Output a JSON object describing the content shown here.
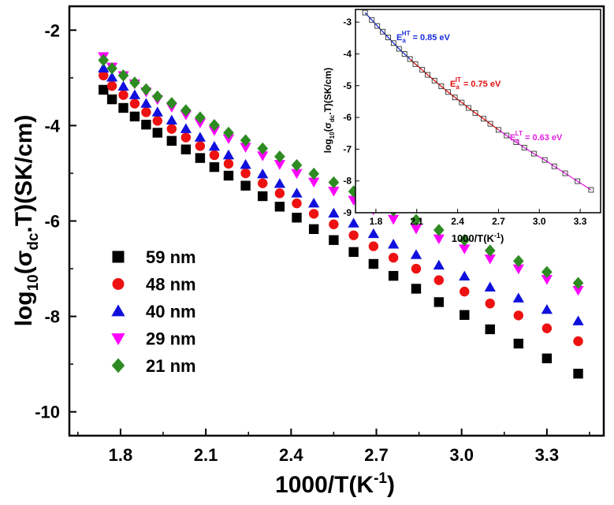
{
  "chart_data": [
    {
      "type": "scatter",
      "xlabel": "1000/T(K⁻¹)",
      "ylabel": "log10(σdc·T)(SK/cm)",
      "xlim": [
        1.62,
        3.5
      ],
      "ylim": [
        -10.5,
        -1.5
      ],
      "xticks": [
        "1.8",
        "2.1",
        "2.4",
        "2.7",
        "3.0",
        "3.3"
      ],
      "yticks": [
        "-2",
        "-4",
        "-6",
        "-8",
        "-10"
      ],
      "legend_position": "bottom-left",
      "x": [
        1.74,
        1.77,
        1.81,
        1.85,
        1.89,
        1.93,
        1.98,
        2.03,
        2.08,
        2.13,
        2.18,
        2.24,
        2.3,
        2.36,
        2.42,
        2.48,
        2.55,
        2.62,
        2.69,
        2.76,
        2.84,
        2.92,
        3.01,
        3.1,
        3.2,
        3.3,
        3.41
      ],
      "series": [
        {
          "name": "59 nm",
          "marker": "square",
          "color": "#000000",
          "values": [
            -3.25,
            -3.45,
            -3.63,
            -3.81,
            -3.98,
            -4.15,
            -4.32,
            -4.5,
            -4.68,
            -4.87,
            -5.05,
            -5.26,
            -5.48,
            -5.7,
            -5.93,
            -6.17,
            -6.4,
            -6.65,
            -6.9,
            -7.15,
            -7.42,
            -7.7,
            -7.97,
            -8.27,
            -8.57,
            -8.88,
            -9.2
          ]
        },
        {
          "name": "48 nm",
          "marker": "circle",
          "color": "#ee1111",
          "values": [
            -2.95,
            -3.17,
            -3.36,
            -3.54,
            -3.72,
            -3.9,
            -4.07,
            -4.25,
            -4.43,
            -4.62,
            -4.8,
            -5.0,
            -5.21,
            -5.42,
            -5.63,
            -5.85,
            -6.07,
            -6.3,
            -6.53,
            -6.77,
            -7.0,
            -7.24,
            -7.48,
            -7.73,
            -7.98,
            -8.25,
            -8.52
          ]
        },
        {
          "name": "40 nm",
          "marker": "triangle-up",
          "color": "#1010dd",
          "values": [
            -2.8,
            -2.99,
            -3.18,
            -3.36,
            -3.54,
            -3.72,
            -3.89,
            -4.07,
            -4.25,
            -4.44,
            -4.62,
            -4.82,
            -5.02,
            -5.22,
            -5.42,
            -5.63,
            -5.84,
            -6.05,
            -6.27,
            -6.49,
            -6.71,
            -6.93,
            -7.16,
            -7.39,
            -7.62,
            -7.86,
            -8.1
          ]
        },
        {
          "name": "29 nm",
          "marker": "triangle-down",
          "color": "#ff00ff",
          "values": [
            -2.55,
            -2.77,
            -2.95,
            -3.12,
            -3.29,
            -3.45,
            -3.61,
            -3.77,
            -3.94,
            -4.1,
            -4.27,
            -4.45,
            -4.63,
            -4.81,
            -5.0,
            -5.18,
            -5.37,
            -5.56,
            -5.76,
            -5.96,
            -6.16,
            -6.37,
            -6.58,
            -6.79,
            -7.0,
            -7.22,
            -7.45
          ]
        },
        {
          "name": "21 nm",
          "marker": "diamond",
          "color": "#2e8b22",
          "values": [
            -2.63,
            -2.8,
            -2.95,
            -3.1,
            -3.24,
            -3.39,
            -3.53,
            -3.68,
            -3.83,
            -3.99,
            -4.15,
            -4.31,
            -4.48,
            -4.65,
            -4.83,
            -5.01,
            -5.19,
            -5.38,
            -5.58,
            -5.78,
            -5.98,
            -6.19,
            -6.4,
            -6.62,
            -6.84,
            -7.07,
            -7.3
          ]
        }
      ]
    },
    {
      "type": "line",
      "panel": "inset",
      "xlabel": "1000/T(K⁻¹)",
      "ylabel": "log10(σdc·T)(SK/cm)",
      "xlim": [
        1.65,
        3.45
      ],
      "ylim": [
        -9,
        -2.6
      ],
      "xticks": [
        "1.8",
        "2.1",
        "2.4",
        "2.7",
        "3.0",
        "3.3"
      ],
      "yticks": [
        "-3",
        "-4",
        "-5",
        "-6",
        "-7",
        "-8",
        "-9"
      ],
      "x": [
        1.72,
        1.77,
        1.81,
        1.85,
        1.89,
        1.93,
        1.97,
        2.01,
        2.05,
        2.09,
        2.14,
        2.18,
        2.23,
        2.28,
        2.33,
        2.38,
        2.43,
        2.48,
        2.53,
        2.59,
        2.64,
        2.7,
        2.76,
        2.83,
        2.89,
        2.96,
        3.04,
        3.11,
        3.19,
        3.28,
        3.38
      ],
      "values": [
        -2.7,
        -2.93,
        -3.12,
        -3.3,
        -3.48,
        -3.66,
        -3.84,
        -4.0,
        -4.16,
        -4.32,
        -4.5,
        -4.66,
        -4.84,
        -5.02,
        -5.2,
        -5.37,
        -5.53,
        -5.7,
        -5.86,
        -6.04,
        -6.2,
        -6.39,
        -6.57,
        -6.78,
        -6.95,
        -7.14,
        -7.34,
        -7.54,
        -7.76,
        -8.01,
        -8.28
      ],
      "fits": [
        {
          "label_main": "E",
          "label_sub": "a",
          "label_sup": "HT",
          "value": "= 0.85 eV",
          "color": "#1a2bd9",
          "x_range": [
            1.72,
            2.05
          ]
        },
        {
          "label_main": "E",
          "label_sub": "a",
          "label_sup": "IT",
          "value": "= 0.75 eV",
          "color": "#e01010",
          "x_range": [
            2.05,
            2.7
          ]
        },
        {
          "label_main": "E",
          "label_sub": "a",
          "label_sup": "LT",
          "value": "= 0.63 eV",
          "color": "#e020e0",
          "x_range": [
            2.7,
            3.38
          ]
        }
      ]
    }
  ]
}
